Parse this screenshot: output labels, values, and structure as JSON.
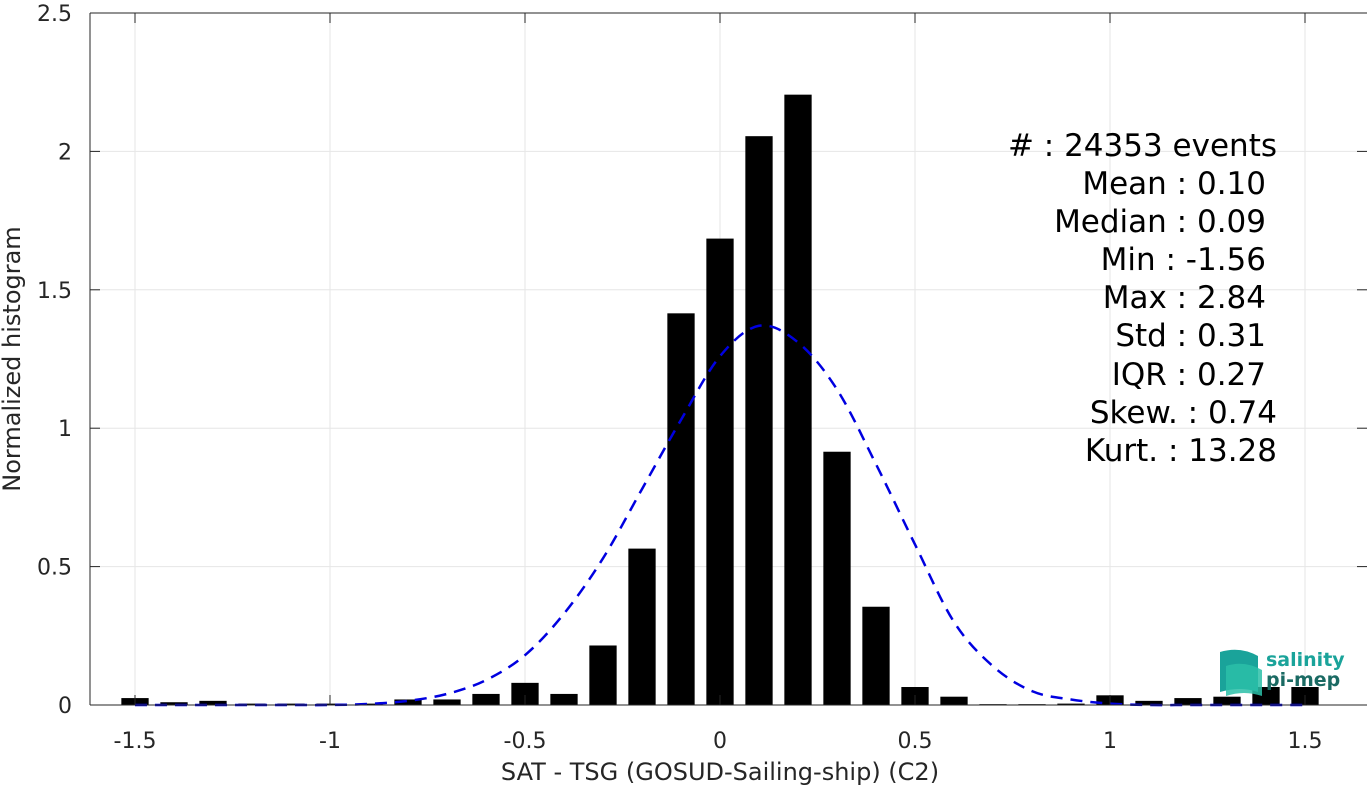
{
  "chart_data": {
    "type": "bar",
    "title": "",
    "xlabel": "SAT - TSG (GOSUD-Sailing-ship) (C2)",
    "ylabel": "Normalized histogram",
    "xlim": [
      -1.6,
      1.6
    ],
    "ylim": [
      0,
      2.5
    ],
    "grid": true,
    "bar_width": 0.07,
    "xticks": [
      -1.5,
      -1,
      -0.5,
      0,
      0.5,
      1,
      1.5
    ],
    "xtick_labels": [
      "-1.5",
      "-1",
      "-0.5",
      "0",
      "0.5",
      "1",
      "1.5"
    ],
    "yticks": [
      0,
      0.5,
      1,
      1.5,
      2,
      2.5
    ],
    "ytick_labels": [
      "0",
      "0.5",
      "1",
      "1.5",
      "2",
      "2.5"
    ],
    "bars": {
      "x": [
        -1.5,
        -1.4,
        -1.3,
        -1.2,
        -1.1,
        -1.0,
        -0.9,
        -0.8,
        -0.7,
        -0.6,
        -0.5,
        -0.4,
        -0.3,
        -0.2,
        -0.1,
        0.0,
        0.1,
        0.2,
        0.3,
        0.4,
        0.5,
        0.6,
        0.7,
        0.8,
        0.9,
        1.0,
        1.1,
        1.2,
        1.3,
        1.4,
        1.5
      ],
      "values": [
        0.025,
        0.01,
        0.015,
        0.005,
        0.005,
        0.005,
        0.005,
        0.02,
        0.02,
        0.04,
        0.08,
        0.04,
        0.215,
        0.565,
        1.415,
        1.685,
        2.055,
        2.205,
        0.915,
        0.355,
        0.065,
        0.03,
        0.003,
        0.003,
        0.005,
        0.035,
        0.015,
        0.025,
        0.03,
        0.065,
        0.065
      ],
      "color": "#000000"
    },
    "fit": {
      "type": "gaussian",
      "style": "dashed",
      "color": "#0000e0",
      "x": [
        -1.5,
        -1.4,
        -1.3,
        -1.2,
        -1.1,
        -1.0,
        -0.9,
        -0.8,
        -0.7,
        -0.6,
        -0.5,
        -0.4,
        -0.3,
        -0.2,
        -0.1,
        0.0,
        0.1,
        0.2,
        0.3,
        0.4,
        0.5,
        0.6,
        0.7,
        0.8,
        0.9,
        1.0,
        1.1,
        1.2,
        1.3,
        1.4,
        1.5
      ],
      "y": [
        0.0,
        0.0,
        0.0,
        0.0,
        0.0,
        0.0,
        0.004,
        0.015,
        0.04,
        0.09,
        0.18,
        0.33,
        0.53,
        0.78,
        1.03,
        1.26,
        1.37,
        1.31,
        1.14,
        0.87,
        0.58,
        0.3,
        0.14,
        0.05,
        0.02,
        0.005,
        0.0,
        0.0,
        0.0,
        0.0,
        0.0
      ]
    },
    "annotations": [
      "#  : 24353 events",
      "Mean : 0.10",
      "Median : 0.09",
      "Min : -1.56",
      "Max : 2.84",
      "Std : 0.31",
      "IQR : 0.27",
      "Skew. : 0.74",
      "Kurt. : 13.28"
    ]
  },
  "logo": {
    "line1": "salinity",
    "line2": "pi-mep",
    "color1": "#1aa39a",
    "color2": "#1a6a63"
  }
}
